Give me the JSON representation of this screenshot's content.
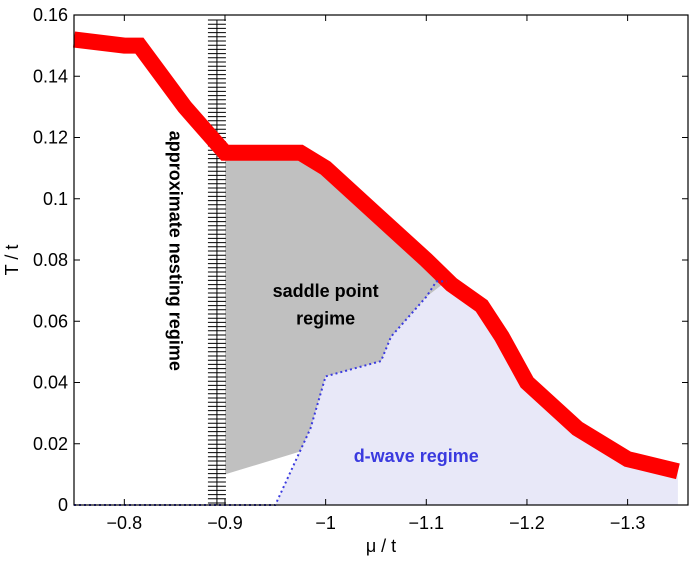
{
  "chart_data": {
    "type": "area",
    "title": "",
    "xlabel": "μ / t",
    "ylabel": "T / t",
    "xlim": [
      -0.75,
      -1.36
    ],
    "ylim": [
      0,
      0.16
    ],
    "x_axis_reversed": true,
    "xticks": [
      -0.8,
      -0.9,
      -1.0,
      -1.1,
      -1.2,
      -1.3
    ],
    "xtick_labels": [
      "−0.8",
      "−0.9",
      "−1",
      "−1.1",
      "−1.2",
      "−1.3"
    ],
    "yticks": [
      0,
      0.02,
      0.04,
      0.06,
      0.08,
      0.1,
      0.12,
      0.14,
      0.16
    ],
    "ytick_labels": [
      "0",
      "0.02",
      "0.04",
      "0.06",
      "0.08",
      "0.1",
      "0.12",
      "0.14",
      "0.16"
    ],
    "grid": false,
    "series": [
      {
        "name": "transition line",
        "color": "#ff0000",
        "x": [
          -0.75,
          -0.8,
          -0.815,
          -0.86,
          -0.9,
          -0.925,
          -0.975,
          -1.0,
          -1.05,
          -1.1,
          -1.125,
          -1.155,
          -1.175,
          -1.2,
          -1.25,
          -1.3,
          -1.35
        ],
        "y": [
          0.152,
          0.15,
          0.15,
          0.13,
          0.115,
          0.115,
          0.115,
          0.11,
          0.095,
          0.08,
          0.072,
          0.065,
          0.055,
          0.04,
          0.025,
          0.015,
          0.011
        ]
      },
      {
        "name": "d-wave boundary",
        "color": "#3a3adf",
        "style": "dotted",
        "x": [
          -0.75,
          -0.95,
          -0.985,
          -1.0,
          -1.055,
          -1.065,
          -1.1,
          -1.11,
          -1.12
        ],
        "y": [
          0.0,
          0.0,
          0.025,
          0.042,
          0.047,
          0.055,
          0.068,
          0.073,
          0.073
        ]
      }
    ],
    "regions": [
      {
        "name": "saddle point regime",
        "color": "#c0c0c0",
        "x": [
          -0.9,
          -0.9,
          -0.925,
          -0.975,
          -1.0,
          -1.05,
          -1.1,
          -1.125,
          -1.155,
          -1.165,
          -1.1,
          -1.05,
          -1.0,
          -0.95,
          -0.9
        ],
        "y": [
          0.007,
          0.115,
          0.115,
          0.115,
          0.11,
          0.095,
          0.08,
          0.072,
          0.065,
          0.052,
          0.03,
          0.024,
          0.02,
          0.015,
          0.01
        ]
      },
      {
        "name": "d-wave regime",
        "color": "#e8e8f8",
        "x": [
          -0.95,
          -0.985,
          -1.0,
          -1.055,
          -1.065,
          -1.1,
          -1.12,
          -1.155,
          -1.175,
          -1.2,
          -1.25,
          -1.3,
          -1.35,
          -1.35
        ],
        "y": [
          0.0,
          0.025,
          0.042,
          0.047,
          0.055,
          0.068,
          0.073,
          0.065,
          0.055,
          0.04,
          0.025,
          0.015,
          0.011,
          0.0
        ]
      }
    ],
    "nesting_boundary_x": -0.892,
    "annotations": [
      {
        "text": "approximate nesting regime",
        "x": -0.845,
        "y": 0.083,
        "rotation": 90,
        "color": "#000000"
      },
      {
        "text": "saddle point",
        "x": -1.0,
        "y": 0.068,
        "color": "#000000"
      },
      {
        "text": "regime",
        "x": -1.0,
        "y": 0.059,
        "color": "#000000"
      },
      {
        "text": "d-wave regime",
        "x": -1.09,
        "y": 0.014,
        "color": "#3a3adf"
      }
    ]
  }
}
